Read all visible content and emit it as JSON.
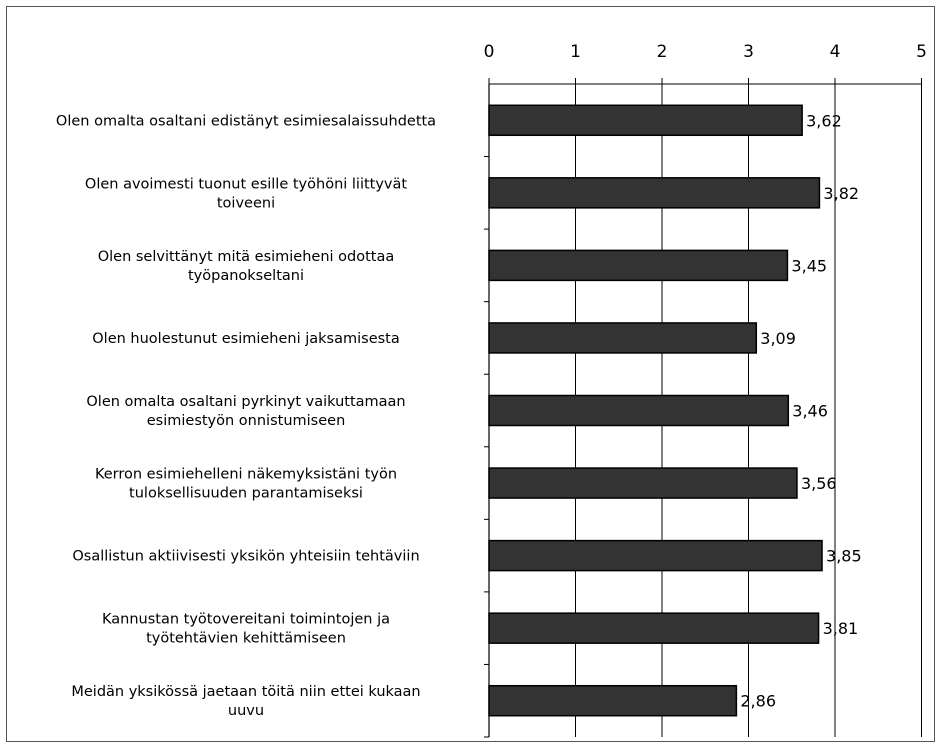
{
  "chart_data": {
    "type": "bar",
    "orientation": "horizontal",
    "title": "",
    "xlabel": "",
    "ylabel": "",
    "xlim": [
      0,
      5
    ],
    "x_ticks": [
      "0",
      "1",
      "2",
      "3",
      "4",
      "5"
    ],
    "x_axis_position": "top",
    "grid": true,
    "legend": "none",
    "bar_color": "#333333",
    "categories": [
      [
        "Olen omalta osaltani edistänyt esimiesalaissuhdetta"
      ],
      [
        "Olen avoimesti tuonut esille työhöni liittyvät",
        "toiveeni"
      ],
      [
        "Olen selvittänyt mitä esimieheni odottaa",
        "työpanokseltani"
      ],
      [
        "Olen huolestunut esimieheni jaksamisesta"
      ],
      [
        "Olen omalta osaltani pyrkinyt vaikuttamaan",
        "esimiestyön onnistumiseen"
      ],
      [
        "Kerron esimiehelleni näkemyksistäni työn",
        "tuloksellisuuden parantamiseksi"
      ],
      [
        "Osallistun aktiivisesti yksikön yhteisiin tehtäviin"
      ],
      [
        "Kannustan työtovereitani toimintojen ja",
        "työtehtävien kehittämiseen"
      ],
      [
        "Meidän yksikössä jaetaan töitä niin ettei kukaan",
        "uuvu"
      ]
    ],
    "values": [
      3.62,
      3.82,
      3.45,
      3.09,
      3.46,
      3.56,
      3.85,
      3.81,
      2.86
    ],
    "data_labels": [
      "3,62",
      "3,82",
      "3,45",
      "3,09",
      "3,46",
      "3,56",
      "3,85",
      "3,81",
      "2,86"
    ]
  }
}
